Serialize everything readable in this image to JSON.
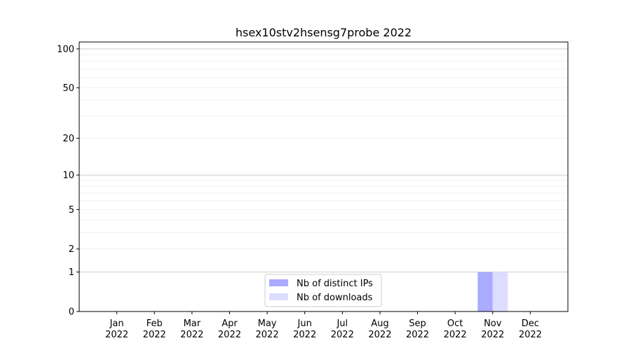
{
  "chart_data": {
    "type": "bar",
    "title": "hsex10stv2hsensg7probe 2022",
    "xlabel": "",
    "ylabel": "",
    "y_scale": "log(1+y)",
    "ylim": [
      0,
      113
    ],
    "y_ticks": [
      0,
      1,
      2,
      5,
      10,
      20,
      50,
      100
    ],
    "grid": true,
    "legend_position": "lower-center",
    "categories": [
      "Jan\n2022",
      "Feb\n2022",
      "Mar\n2022",
      "Apr\n2022",
      "May\n2022",
      "Jun\n2022",
      "Jul\n2022",
      "Aug\n2022",
      "Sep\n2022",
      "Oct\n2022",
      "Nov\n2022",
      "Dec\n2022"
    ],
    "series": [
      {
        "name": "Nb of distinct IPs",
        "color": "#aaaaff",
        "values": [
          0,
          0,
          0,
          0,
          0,
          0,
          0,
          0,
          0,
          0,
          1,
          0
        ]
      },
      {
        "name": "Nb of downloads",
        "color": "#ddddff",
        "values": [
          0,
          0,
          0,
          0,
          0,
          0,
          0,
          0,
          0,
          0,
          1,
          0
        ]
      }
    ]
  }
}
